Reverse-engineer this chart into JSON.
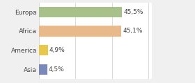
{
  "categories": [
    "Europa",
    "Africa",
    "America",
    "Asia"
  ],
  "values": [
    45.5,
    45.1,
    4.9,
    4.5
  ],
  "labels": [
    "45,5%",
    "45,1%",
    "4,9%",
    "4,5%"
  ],
  "bar_colors": [
    "#a8c08a",
    "#e8b98a",
    "#e8c84a",
    "#7b89b8"
  ],
  "background_color": "#f0f0f0",
  "plot_bg_color": "#ffffff",
  "xlim": [
    0,
    62
  ],
  "label_fontsize": 6.5,
  "cat_fontsize": 6.5,
  "bar_height": 0.55
}
